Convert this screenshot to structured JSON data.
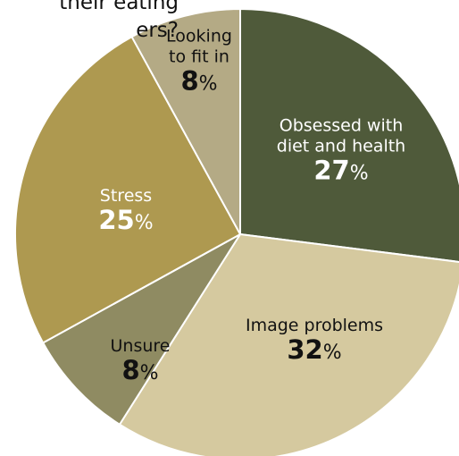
{
  "header": {
    "title_line1": "their eating",
    "title_line2": "ers?"
  },
  "chart_data": {
    "type": "pie",
    "title": "",
    "slices": [
      {
        "label_lines": [
          "Obsessed with",
          "diet and health"
        ],
        "value": 27,
        "pct_suffix": "%",
        "color": "#4f5a3a",
        "text_color": "#ffffff"
      },
      {
        "label_lines": [
          "Image problems"
        ],
        "value": 32,
        "pct_suffix": "%",
        "color": "#d5c99f",
        "text_color": "#111111"
      },
      {
        "label_lines": [
          "Unsure"
        ],
        "value": 8,
        "pct_suffix": "%",
        "color": "#8f8b62",
        "text_color": "#111111"
      },
      {
        "label_lines": [
          "Stress"
        ],
        "value": 25,
        "pct_suffix": "%",
        "color": "#ae9950",
        "text_color": "#ffffff"
      },
      {
        "label_lines": [
          "Looking",
          "to fit in"
        ],
        "value": 8,
        "pct_suffix": "%",
        "color": "#b4aa85",
        "text_color": "#111111"
      }
    ]
  }
}
